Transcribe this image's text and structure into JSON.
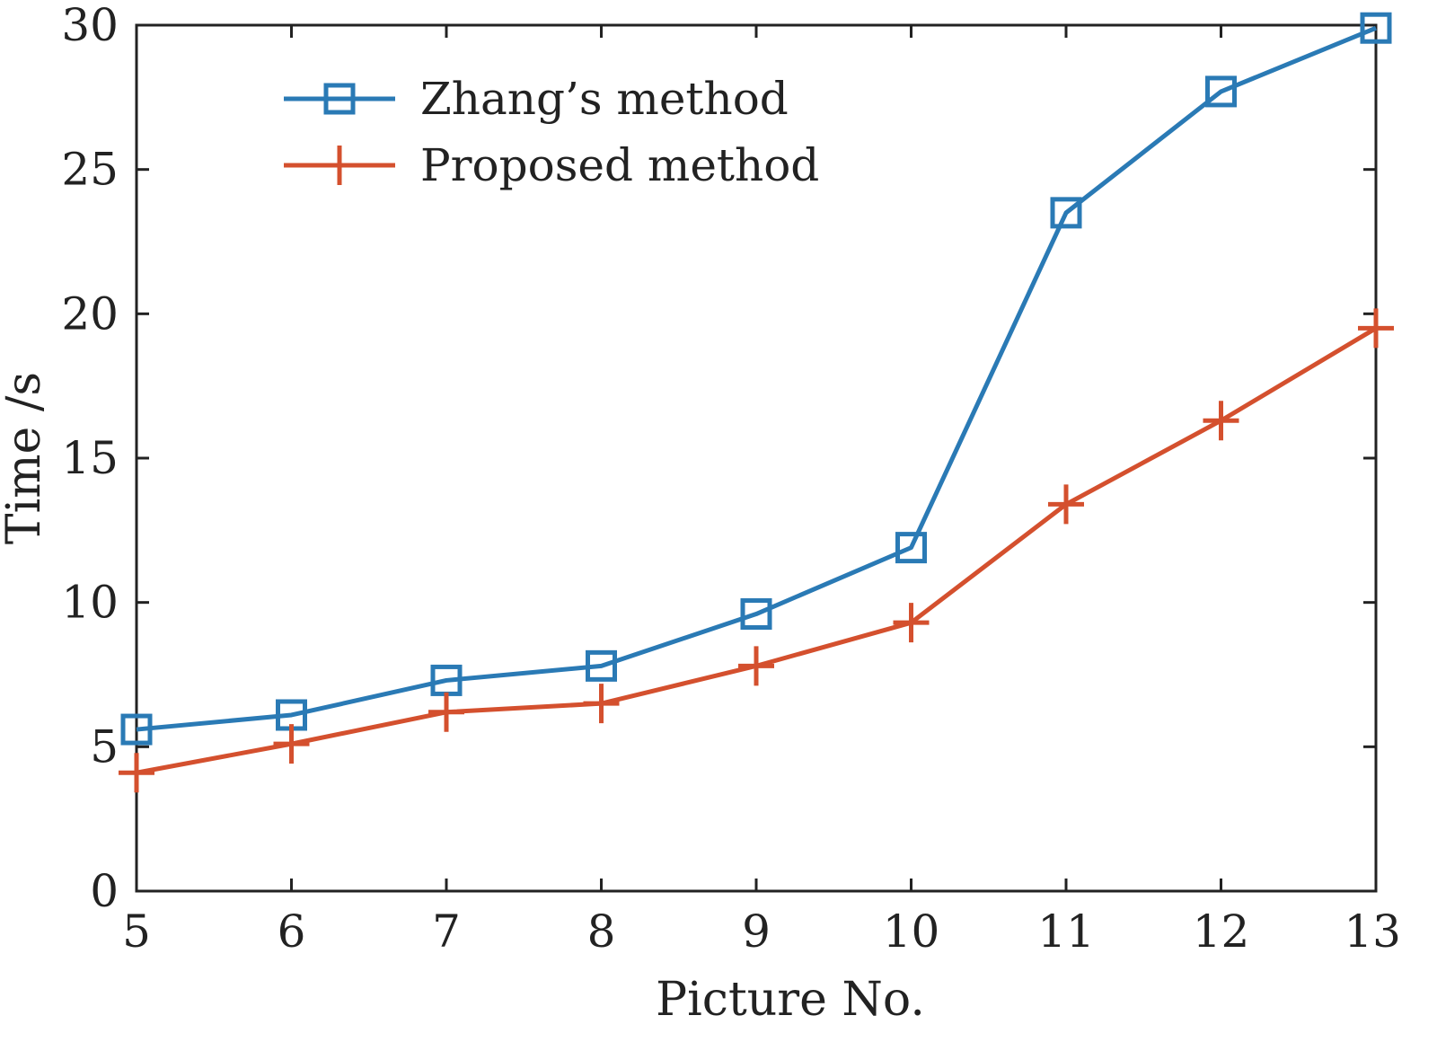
{
  "chart_data": {
    "type": "line",
    "xlabel": "Picture No.",
    "ylabel": "Time /s",
    "x": [
      5,
      6,
      7,
      8,
      9,
      10,
      11,
      12,
      13
    ],
    "xlim": [
      5,
      13
    ],
    "ylim": [
      0,
      30
    ],
    "xticks": [
      "5",
      "6",
      "7",
      "8",
      "9",
      "10",
      "11",
      "12",
      "13"
    ],
    "yticks": [
      "0",
      "5",
      "10",
      "15",
      "20",
      "25",
      "30"
    ],
    "grid": false,
    "legend_position": "top-left",
    "series": [
      {
        "name": "Zhang’s method",
        "marker": "square",
        "color": "#2a7ab5",
        "values": [
          5.6,
          6.1,
          7.3,
          7.8,
          9.6,
          11.9,
          23.5,
          27.7,
          29.9
        ]
      },
      {
        "name": "Proposed method",
        "marker": "plus",
        "color": "#d4502e",
        "values": [
          4.1,
          5.1,
          6.2,
          6.5,
          7.8,
          9.3,
          13.4,
          16.3,
          19.5
        ]
      }
    ]
  }
}
